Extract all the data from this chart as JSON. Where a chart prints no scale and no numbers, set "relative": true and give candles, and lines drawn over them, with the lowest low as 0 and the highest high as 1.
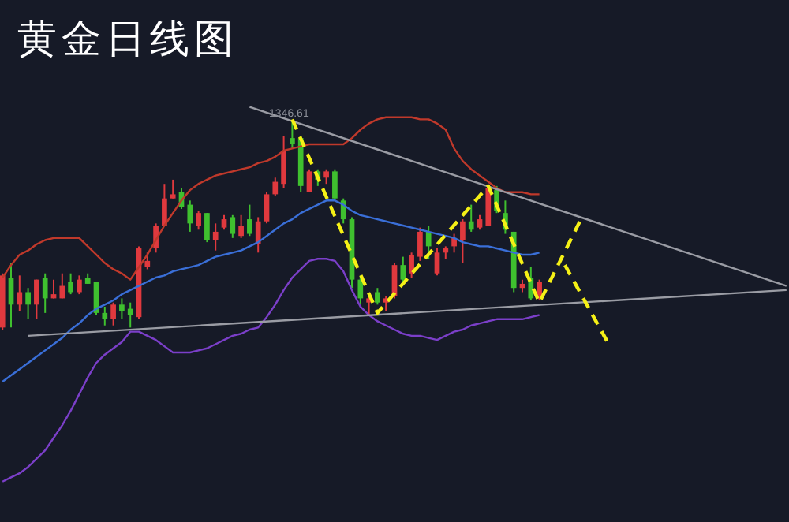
{
  "chart_data": {
    "type": "candlestick",
    "title": "黄金日线图",
    "relative": true,
    "categories": [
      null,
      null,
      null,
      null,
      null,
      null,
      null,
      null,
      null,
      null,
      null,
      null,
      null,
      null,
      null,
      null,
      null,
      null,
      null,
      null,
      null,
      null,
      null,
      null,
      null,
      null,
      null,
      null,
      null,
      null,
      null,
      null,
      null,
      null,
      null,
      null,
      null,
      null,
      null,
      null,
      null,
      null,
      null,
      null,
      null,
      null,
      null,
      null,
      null,
      null,
      null,
      null,
      null,
      null,
      null,
      null,
      null,
      null,
      null,
      null,
      null,
      null,
      null,
      null,
      null,
      null,
      null,
      null,
      null,
      null,
      null,
      null,
      null,
      null,
      null,
      null,
      null,
      null,
      null,
      null,
      null,
      null,
      null,
      null,
      null,
      null,
      null,
      null,
      null,
      null,
      null,
      null,
      null
    ],
    "ohlc": [
      [
        0.01,
        0.27,
        0,
        0.26
      ],
      [
        0.25,
        0.32,
        0.01,
        0.12
      ],
      [
        0.12,
        0.26,
        0.09,
        0.18
      ],
      [
        0.18,
        0.2,
        0.05,
        0.12
      ],
      [
        0.12,
        0.24,
        0.05,
        0.24
      ],
      [
        0.25,
        0.27,
        0.08,
        0.15
      ],
      [
        0.15,
        0.24,
        0.15,
        0.17
      ],
      [
        0.15,
        0.27,
        0.15,
        0.21
      ],
      [
        0.23,
        0.27,
        0.17,
        0.18
      ],
      [
        0.18,
        0.26,
        0.17,
        0.24
      ],
      [
        0.25,
        0.27,
        0.22,
        0.22
      ],
      [
        0.23,
        0.23,
        0.07,
        0.08
      ],
      [
        0.08,
        0.11,
        0.02,
        0.05
      ],
      [
        0.05,
        0.13,
        0.02,
        0.12
      ],
      [
        0.12,
        0.15,
        0.05,
        0.09
      ],
      [
        0.1,
        0.13,
        0.01,
        0.07
      ],
      [
        0.06,
        0.4,
        0.05,
        0.39
      ],
      [
        0.3,
        0.37,
        0.29,
        0.33
      ],
      [
        0.39,
        0.51,
        0.37,
        0.5
      ],
      [
        0.5,
        0.7,
        0.5,
        0.63
      ],
      [
        0.63,
        0.72,
        0.63,
        0.65
      ],
      [
        0.66,
        0.68,
        0.58,
        0.59
      ],
      [
        0.6,
        0.62,
        0.47,
        0.51
      ],
      [
        0.5,
        0.57,
        0.48,
        0.56
      ],
      [
        0.56,
        0.56,
        0.42,
        0.43
      ],
      [
        0.43,
        0.51,
        0.38,
        0.47
      ],
      [
        0.49,
        0.55,
        0.48,
        0.53
      ],
      [
        0.54,
        0.55,
        0.44,
        0.46
      ],
      [
        0.45,
        0.55,
        0.44,
        0.5
      ],
      [
        0.53,
        0.6,
        0.45,
        0.46
      ],
      [
        0.41,
        0.54,
        0.37,
        0.52
      ],
      [
        0.52,
        0.66,
        0.51,
        0.65
      ],
      [
        0.65,
        0.73,
        0.64,
        0.71
      ],
      [
        0.7,
        0.93,
        0.68,
        0.86
      ],
      [
        0.92,
        1.0,
        0.87,
        0.89
      ],
      [
        0.92,
        0.93,
        0.66,
        0.69
      ],
      [
        0.66,
        0.77,
        0.66,
        0.76
      ],
      [
        0.76,
        0.77,
        0.69,
        0.72
      ],
      [
        0.73,
        0.77,
        0.7,
        0.76
      ],
      [
        0.76,
        0.77,
        0.62,
        0.63
      ],
      [
        0.62,
        0.63,
        0.51,
        0.53
      ],
      [
        0.53,
        0.54,
        0.2,
        0.24
      ],
      [
        0.24,
        0.26,
        0.12,
        0.15
      ],
      [
        0.13,
        0.17,
        0.07,
        0.15
      ],
      [
        0.18,
        0.2,
        0.12,
        0.13
      ],
      [
        0.13,
        0.16,
        0.09,
        0.15
      ],
      [
        0.16,
        0.32,
        0.15,
        0.31
      ],
      [
        0.31,
        0.35,
        0.22,
        0.24
      ],
      [
        0.27,
        0.37,
        0.25,
        0.36
      ],
      [
        0.35,
        0.49,
        0.33,
        0.47
      ],
      [
        0.47,
        0.5,
        0.34,
        0.4
      ],
      [
        0.27,
        0.39,
        0.26,
        0.37
      ],
      [
        0.37,
        0.4,
        0.34,
        0.39
      ],
      [
        0.4,
        0.46,
        0.37,
        0.44
      ],
      [
        0.43,
        0.53,
        0.32,
        0.52
      ],
      [
        0.52,
        0.6,
        0.47,
        0.48
      ],
      [
        0.49,
        0.55,
        0.48,
        0.53
      ],
      [
        0.5,
        0.69,
        0.5,
        0.68
      ],
      [
        0.67,
        0.69,
        0.56,
        0.57
      ],
      [
        0.56,
        0.62,
        0.46,
        0.48
      ],
      [
        0.47,
        0.47,
        0.18,
        0.2
      ],
      [
        0.2,
        0.24,
        0.18,
        0.22
      ],
      [
        0.25,
        0.3,
        0.14,
        0.15
      ],
      [
        0.15,
        0.24,
        0.14,
        0.23
      ],
      null,
      null,
      null,
      null,
      null,
      null,
      null,
      null,
      null,
      null,
      null,
      null,
      null,
      null,
      null,
      null,
      null,
      null,
      null,
      null,
      null,
      null,
      null,
      null,
      null,
      null,
      null,
      null,
      null
    ],
    "colors": [
      "#e0393e",
      "#3fc02f",
      "#e0393e",
      "#3fc02f",
      "#e0393e",
      "#3fc02f",
      "#e0393e",
      "#e0393e",
      "#3fc02f",
      "#e0393e",
      "#3fc02f",
      "#3fc02f",
      "#3fc02f",
      "#e0393e",
      "#3fc02f",
      "#3fc02f",
      "#e0393e",
      "#e0393e",
      "#e0393e",
      "#e0393e",
      "#e0393e",
      "#3fc02f",
      "#3fc02f",
      "#e0393e",
      "#3fc02f",
      "#e0393e",
      "#e0393e",
      "#3fc02f",
      "#e0393e",
      "#3fc02f",
      "#e0393e",
      "#e0393e",
      "#e0393e",
      "#e0393e",
      "#3fc02f",
      "#3fc02f",
      "#e0393e",
      "#3fc02f",
      "#e0393e",
      "#3fc02f",
      "#3fc02f",
      "#3fc02f",
      "#3fc02f",
      "#e0393e",
      "#3fc02f",
      "#e0393e",
      "#e0393e",
      "#3fc02f",
      "#e0393e",
      "#e0393e",
      "#3fc02f",
      "#e0393e",
      "#e0393e",
      "#e0393e",
      "#e0393e",
      "#3fc02f",
      "#e0393e",
      "#e0393e",
      "#3fc02f",
      "#3fc02f",
      "#3fc02f",
      "#e0393e",
      "#3fc02f",
      "#e0393e",
      null,
      null,
      null,
      null,
      null,
      null,
      null,
      null,
      null,
      null,
      null,
      null,
      null,
      null,
      null,
      null,
      null,
      null,
      null,
      null,
      null,
      null,
      null,
      null,
      null,
      null,
      null,
      null,
      null
    ],
    "series": [
      {
        "type": "line",
        "color": "#c0392b",
        "values": [
          0.25,
          0.31,
          0.36,
          0.38,
          0.41,
          0.43,
          0.44,
          0.44,
          0.44,
          0.44,
          0.4,
          0.36,
          0.32,
          0.29,
          0.27,
          0.24,
          0.3,
          0.36,
          0.43,
          0.5,
          0.56,
          0.62,
          0.67,
          0.7,
          0.72,
          0.74,
          0.75,
          0.76,
          0.77,
          0.78,
          0.8,
          0.81,
          0.83,
          0.86,
          0.87,
          0.88,
          0.89,
          0.89,
          0.89,
          0.89,
          0.89,
          0.92,
          0.96,
          0.99,
          1.01,
          1.02,
          1.02,
          1.02,
          1.02,
          1.01,
          1.01,
          0.99,
          0.96,
          0.87,
          0.81,
          0.77,
          0.74,
          0.71,
          0.68,
          0.66,
          0.66,
          0.66,
          0.65,
          0.65,
          null,
          null,
          null,
          null,
          null,
          null,
          null,
          null,
          null,
          null,
          null,
          null,
          null,
          null,
          null,
          null,
          null,
          null,
          null,
          null,
          null,
          null,
          null,
          null,
          null,
          null,
          null,
          null,
          null
        ]
      },
      {
        "type": "line",
        "color": "#3a6fd8",
        "values": [
          -0.25,
          -0.22,
          -0.19,
          -0.16,
          -0.13,
          -0.1,
          -0.07,
          -0.04,
          0.0,
          0.03,
          0.07,
          0.1,
          0.12,
          0.14,
          0.17,
          0.19,
          0.21,
          0.23,
          0.25,
          0.26,
          0.28,
          0.29,
          0.3,
          0.31,
          0.33,
          0.35,
          0.36,
          0.37,
          0.38,
          0.4,
          0.42,
          0.45,
          0.48,
          0.51,
          0.53,
          0.56,
          0.58,
          0.6,
          0.62,
          0.62,
          0.6,
          0.57,
          0.55,
          0.54,
          0.53,
          0.52,
          0.51,
          0.5,
          0.49,
          0.48,
          0.47,
          0.46,
          0.45,
          0.44,
          0.42,
          0.41,
          0.4,
          0.4,
          0.39,
          0.38,
          0.37,
          0.36,
          0.36,
          0.37,
          null,
          null,
          null,
          null,
          null,
          null,
          null,
          null,
          null,
          null,
          null,
          null,
          null,
          null,
          null,
          null,
          null,
          null,
          null,
          null,
          null,
          null,
          null,
          null,
          null,
          null,
          null,
          null,
          null
        ]
      },
      {
        "type": "line",
        "color": "#7b3fc9",
        "values": [
          -0.73,
          -0.71,
          -0.69,
          -0.66,
          -0.62,
          -0.58,
          -0.52,
          -0.46,
          -0.39,
          -0.31,
          -0.23,
          -0.16,
          -0.12,
          -0.09,
          -0.06,
          -0.01,
          -0.01,
          -0.03,
          -0.05,
          -0.08,
          -0.11,
          -0.11,
          -0.11,
          -0.1,
          -0.09,
          -0.07,
          -0.05,
          -0.03,
          -0.02,
          0.0,
          0.01,
          0.06,
          0.12,
          0.19,
          0.25,
          0.29,
          0.33,
          0.34,
          0.34,
          0.33,
          0.28,
          0.19,
          0.11,
          0.07,
          0.04,
          0.02,
          0.0,
          -0.02,
          -0.03,
          -0.03,
          -0.04,
          -0.05,
          -0.03,
          -0.01,
          0.0,
          0.02,
          0.03,
          0.04,
          0.05,
          0.05,
          0.05,
          0.05,
          0.06,
          0.07,
          null,
          null,
          null,
          null,
          null,
          null,
          null,
          null,
          null,
          null,
          null,
          null,
          null,
          null,
          null,
          null,
          null,
          null,
          null,
          null,
          null,
          null,
          null,
          null,
          null,
          null,
          null,
          null,
          null
        ]
      },
      {
        "type": "line",
        "color": "#9a9ca4",
        "values": [
          null,
          null,
          null,
          null,
          null,
          null,
          null,
          null,
          null,
          null,
          null,
          null,
          null,
          null,
          null,
          null,
          null,
          null,
          null,
          null,
          null,
          null,
          null,
          null,
          null,
          null,
          null,
          null,
          null,
          1.07,
          null,
          null,
          null,
          null,
          null,
          null,
          null,
          null,
          null,
          null,
          null,
          null,
          null,
          null,
          null,
          null,
          null,
          null,
          null,
          null,
          null,
          null,
          null,
          null,
          null,
          null,
          null,
          null,
          null,
          null,
          null,
          null,
          null,
          null,
          null,
          null,
          null,
          null,
          null,
          null,
          null,
          null,
          null,
          null,
          null,
          null,
          null,
          null,
          null,
          null,
          null,
          null,
          null,
          null,
          null,
          null,
          null,
          null,
          null,
          null,
          null,
          null,
          0.21
        ]
      },
      {
        "type": "line",
        "color": "#9a9ca4",
        "values": [
          null,
          null,
          null,
          -0.03,
          null,
          null,
          null,
          null,
          null,
          null,
          null,
          null,
          null,
          null,
          null,
          null,
          null,
          null,
          null,
          null,
          null,
          null,
          null,
          null,
          null,
          null,
          null,
          null,
          null,
          null,
          null,
          null,
          null,
          null,
          null,
          null,
          null,
          null,
          null,
          null,
          null,
          null,
          null,
          null,
          null,
          null,
          null,
          null,
          null,
          null,
          null,
          null,
          null,
          null,
          null,
          null,
          null,
          null,
          null,
          null,
          null,
          null,
          null,
          null,
          null,
          null,
          null,
          null,
          null,
          null,
          null,
          null,
          null,
          null,
          null,
          null,
          null,
          null,
          null,
          null,
          null,
          null,
          null,
          null,
          null,
          null,
          null,
          null,
          null,
          null,
          null,
          null,
          0.19
        ]
      },
      {
        "type": "line",
        "color": "#f5f016",
        "line_style": "dashed",
        "values": [
          null,
          null,
          null,
          null,
          null,
          null,
          null,
          null,
          null,
          null,
          null,
          null,
          null,
          null,
          null,
          null,
          null,
          null,
          null,
          null,
          null,
          null,
          null,
          null,
          null,
          null,
          null,
          null,
          null,
          null,
          null,
          null,
          null,
          null,
          1.01,
          null,
          null,
          null,
          null,
          null,
          null,
          null,
          null,
          null,
          0.08,
          null,
          null,
          null,
          null,
          null,
          null,
          null,
          null,
          null,
          null,
          null,
          null,
          0.69,
          null,
          null,
          null,
          null,
          null,
          0.13,
          null,
          null,
          null,
          null,
          0.54,
          null,
          null,
          null,
          null,
          null,
          null,
          null,
          null,
          null,
          null,
          null,
          null,
          null,
          null,
          null,
          null,
          null,
          null,
          null,
          null,
          null,
          null,
          null,
          null
        ]
      },
      {
        "type": "line",
        "color": "#f5f016",
        "line_style": "dashed",
        "values": [
          null,
          null,
          null,
          null,
          null,
          null,
          null,
          null,
          null,
          null,
          null,
          null,
          null,
          null,
          null,
          null,
          null,
          null,
          null,
          null,
          null,
          null,
          null,
          null,
          null,
          null,
          null,
          null,
          null,
          null,
          null,
          null,
          null,
          null,
          null,
          null,
          null,
          null,
          null,
          null,
          null,
          null,
          null,
          null,
          null,
          null,
          null,
          null,
          null,
          null,
          null,
          null,
          null,
          null,
          null,
          null,
          null,
          null,
          null,
          null,
          null,
          null,
          null,
          null,
          null,
          null,
          0.31,
          null,
          null,
          null,
          null,
          -0.06,
          null,
          null,
          null,
          null,
          null,
          null,
          null,
          null,
          null,
          null,
          null,
          null,
          null,
          null,
          null,
          null,
          null,
          null,
          null,
          null,
          null
        ]
      }
    ],
    "annotations": [
      "1346.61"
    ]
  }
}
